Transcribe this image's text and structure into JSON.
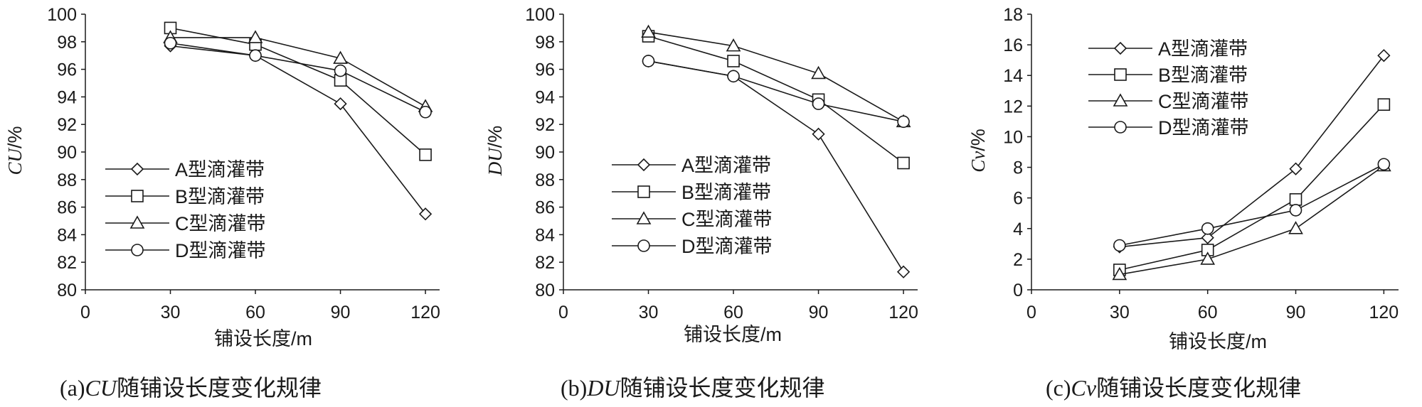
{
  "chart_data": [
    {
      "type": "line",
      "caption_prefix": "(a)",
      "caption_metric": "CU",
      "caption_suffix": "随铺设长度变化规律",
      "ylabel_metric": "CU",
      "ylabel_unit": "/%",
      "xlabel": "铺设长度/m",
      "x": [
        30,
        60,
        90,
        120
      ],
      "xticks": [
        0,
        30,
        60,
        90,
        120
      ],
      "xlim": [
        0,
        125
      ],
      "ylim": [
        80,
        100
      ],
      "yticks": [
        80,
        82,
        84,
        86,
        88,
        90,
        92,
        94,
        96,
        98,
        100
      ],
      "grid": false,
      "legend_position": "left-middle",
      "series": [
        {
          "name": "A型滴灌带",
          "marker": "diamond",
          "values": [
            97.7,
            97.0,
            93.5,
            85.5
          ]
        },
        {
          "name": "B型滴灌带",
          "marker": "square",
          "values": [
            99.0,
            97.8,
            95.2,
            89.8
          ]
        },
        {
          "name": "C型滴灌带",
          "marker": "triangle",
          "values": [
            98.3,
            98.3,
            96.8,
            93.3
          ]
        },
        {
          "name": "D型滴灌带",
          "marker": "circle",
          "values": [
            97.9,
            97.0,
            95.9,
            92.9
          ]
        }
      ]
    },
    {
      "type": "line",
      "caption_prefix": "(b)",
      "caption_metric": "DU",
      "caption_suffix": "随铺设长度变化规律",
      "ylabel_metric": "DU",
      "ylabel_unit": "/%",
      "xlabel": "铺设长度/m",
      "x": [
        30,
        60,
        90,
        120
      ],
      "xticks": [
        0,
        30,
        60,
        90,
        120
      ],
      "xlim": [
        0,
        125
      ],
      "ylim": [
        80,
        100
      ],
      "yticks": [
        80,
        82,
        84,
        86,
        88,
        90,
        92,
        94,
        96,
        98,
        100
      ],
      "grid": false,
      "legend_position": "left-middle",
      "series": [
        {
          "name": "A型滴灌带",
          "marker": "diamond",
          "values": [
            96.6,
            95.5,
            91.3,
            81.3
          ]
        },
        {
          "name": "B型滴灌带",
          "marker": "square",
          "values": [
            98.4,
            96.6,
            93.8,
            89.2
          ]
        },
        {
          "name": "C型滴灌带",
          "marker": "triangle",
          "values": [
            98.7,
            97.7,
            95.7,
            92.2
          ]
        },
        {
          "name": "D型滴灌带",
          "marker": "circle",
          "values": [
            96.6,
            95.5,
            93.5,
            92.2
          ]
        }
      ]
    },
    {
      "type": "line",
      "caption_prefix": "(c)",
      "caption_metric": "Cv",
      "caption_suffix": "随铺设长度变化规律",
      "ylabel_metric": "Cv",
      "ylabel_unit": "/%",
      "xlabel": "铺设长度/m",
      "x": [
        30,
        60,
        90,
        120
      ],
      "xticks": [
        0,
        30,
        60,
        90,
        120
      ],
      "xlim": [
        0,
        125
      ],
      "ylim": [
        0,
        18
      ],
      "yticks": [
        0,
        2,
        4,
        6,
        8,
        10,
        12,
        14,
        16,
        18
      ],
      "grid": false,
      "legend_position": "top-left",
      "series": [
        {
          "name": "A型滴灌带",
          "marker": "diamond",
          "values": [
            2.8,
            3.4,
            7.9,
            15.3
          ]
        },
        {
          "name": "B型滴灌带",
          "marker": "square",
          "values": [
            1.3,
            2.6,
            5.9,
            12.1
          ]
        },
        {
          "name": "C型滴灌带",
          "marker": "triangle",
          "values": [
            1.0,
            2.0,
            4.0,
            8.1
          ]
        },
        {
          "name": "D型滴灌带",
          "marker": "circle",
          "values": [
            2.9,
            4.0,
            5.2,
            8.2
          ]
        }
      ]
    }
  ]
}
